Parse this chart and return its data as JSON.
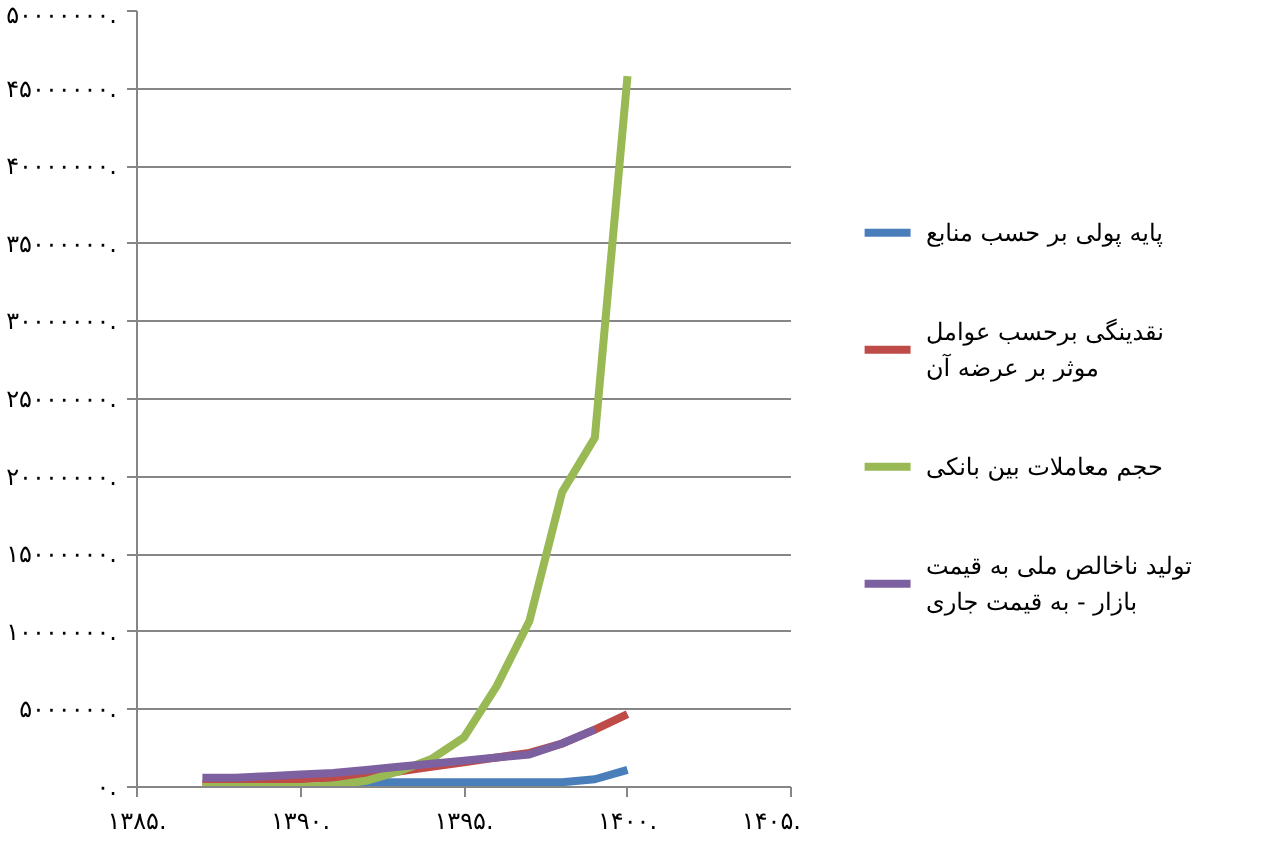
{
  "chart_data": {
    "type": "line",
    "x": [
      1387,
      1388,
      1389,
      1390,
      1391,
      1392,
      1393,
      1394,
      1395,
      1396,
      1397,
      1398,
      1399,
      1400
    ],
    "xlim": [
      1385,
      1405
    ],
    "xticks": [
      {
        "value": 1385,
        "label": "۱۳۸۵."
      },
      {
        "value": 1390,
        "label": "۱۳۹۰."
      },
      {
        "value": 1395,
        "label": "۱۳۹۵."
      },
      {
        "value": 1400,
        "label": "۱۴۰۰."
      },
      {
        "value": 1405,
        "label": "۱۴۰۵."
      }
    ],
    "ylim": [
      0,
      50000000
    ],
    "yticks": [
      {
        "value": 0,
        "label": "۰."
      },
      {
        "value": 5000000,
        "label": "۵۰۰۰۰۰۰."
      },
      {
        "value": 10000000,
        "label": "۱۰۰۰۰۰۰۰."
      },
      {
        "value": 15000000,
        "label": "۱۵۰۰۰۰۰۰."
      },
      {
        "value": 20000000,
        "label": "۲۰۰۰۰۰۰۰."
      },
      {
        "value": 25000000,
        "label": "۲۵۰۰۰۰۰۰."
      },
      {
        "value": 30000000,
        "label": "۳۰۰۰۰۰۰۰."
      },
      {
        "value": 35000000,
        "label": "۳۵۰۰۰۰۰۰."
      },
      {
        "value": 40000000,
        "label": "۴۰۰۰۰۰۰۰."
      },
      {
        "value": 45000000,
        "label": "۴۵۰۰۰۰۰۰."
      },
      {
        "value": 50000000,
        "label": "۵۰۰۰۰۰۰۰."
      }
    ],
    "grid": "y",
    "legend": "right",
    "line_style": "solid",
    "series": [
      {
        "name": "پایه پولی بر حسب منابع",
        "color": "#4a7ebb",
        "values": [
          null,
          null,
          null,
          null,
          300000,
          300000,
          300000,
          300000,
          300000,
          300000,
          300000,
          300000,
          500000,
          1100000
        ]
      },
      {
        "name": "نقدینگی برحسب عوامل\nموثر بر عرضه آن",
        "color": "#be4b48",
        "values": [
          200000,
          300000,
          400000,
          500000,
          600000,
          800000,
          1000000,
          1300000,
          1600000,
          1900000,
          2200000,
          2800000,
          3700000,
          4700000
        ]
      },
      {
        "name": "حجم معاملات بین بانکی",
        "color": "#98b954",
        "values": [
          0,
          0,
          0,
          0,
          100000,
          400000,
          1000000,
          1800000,
          3200000,
          6500000,
          10700000,
          19000000,
          22500000,
          45800000
        ]
      },
      {
        "name": "تولید ناخالص ملی به قیمت\nبازار - به قیمت جاری",
        "color": "#7d60a0",
        "values": [
          600000,
          600000,
          700000,
          800000,
          900000,
          1100000,
          1300000,
          1500000,
          1700000,
          1900000,
          2100000,
          2800000,
          3700000,
          null
        ]
      }
    ]
  }
}
